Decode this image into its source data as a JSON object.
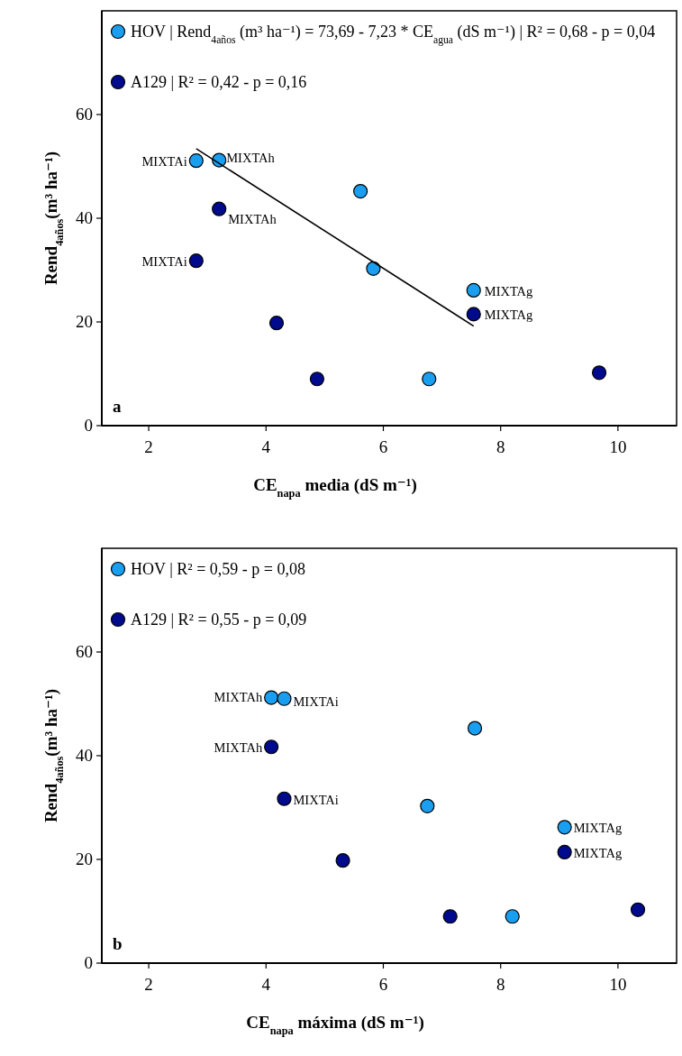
{
  "chart_data": [
    {
      "type": "scatter",
      "xlabel": "CE$_{napa}$ media (dS m⁻¹)",
      "ylabel": "Rend$_{4años}$(m³ ha⁻¹)",
      "xlim": [
        1.2,
        11
      ],
      "ylim": [
        0,
        80
      ],
      "xticks": [
        2,
        4,
        6,
        8,
        10
      ],
      "yticks": [
        0,
        20,
        40,
        60
      ],
      "legend": "top left",
      "marker": "circle",
      "series": [
        {
          "name": "HOV | Rend$_{4años}$ (m³ ha⁻¹) = 73,69 - 7,23 * CE$_{agua}$ (dS m⁻¹) | R² = 0,68 - p = 0,04",
          "color": "#1a9ff0",
          "x": [
            2.81,
            3.2,
            5.61,
            5.83,
            6.78,
            7.54
          ],
          "values": [
            51.1,
            51.2,
            45.2,
            30.3,
            9.0,
            26.1
          ]
        },
        {
          "name": "A129 | R² = 0,42 - p = 0,16",
          "color": "#000a8c",
          "x": [
            3.2,
            2.81,
            4.18,
            4.87,
            7.54,
            9.68
          ],
          "values": [
            41.8,
            31.8,
            19.8,
            9.0,
            21.5,
            10.2
          ]
        },
        {
          "type": "line",
          "marker": "none",
          "color": "#000000",
          "x": [
            2.81,
            7.54
          ],
          "values": [
            53.4,
            19.2
          ]
        }
      ],
      "annotations": [
        {
          "text": "MIXTAi",
          "x": 2.81,
          "y": 51.1
        },
        {
          "text": "MIXTAh",
          "x": 3.2,
          "y": 51.2
        },
        {
          "text": "MIXTAh",
          "x": 3.2,
          "y": 41.8
        },
        {
          "text": "MIXTAi",
          "x": 2.81,
          "y": 31.8
        },
        {
          "text": "MIXTAg",
          "x": 7.54,
          "y": 26.1
        },
        {
          "text": "MIXTAg",
          "x": 7.54,
          "y": 21.5
        },
        "a"
      ]
    },
    {
      "type": "scatter",
      "xlabel": "CE$_{napa}$ máxima (dS m⁻¹)",
      "ylabel": "Rend$_{4años}$(m³ ha⁻¹)",
      "xlim": [
        1.2,
        11
      ],
      "ylim": [
        0,
        80
      ],
      "xticks": [
        2,
        4,
        6,
        8,
        10
      ],
      "yticks": [
        0,
        20,
        40,
        60
      ],
      "legend": "top left",
      "marker": "circle",
      "series": [
        {
          "name": "HOV | R² = 0,59 - p = 0,08",
          "color": "#1a9ff0",
          "x": [
            4.09,
            4.31,
            7.56,
            6.75,
            8.2,
            9.09
          ],
          "values": [
            51.2,
            51.0,
            45.3,
            30.3,
            9.0,
            26.2
          ]
        },
        {
          "name": "A129 | R² = 0,55 - p = 0,09",
          "color": "#000a8c",
          "x": [
            4.09,
            4.31,
            5.31,
            7.14,
            9.09,
            10.34
          ],
          "values": [
            41.7,
            31.7,
            19.8,
            9.0,
            21.4,
            10.3
          ]
        }
      ],
      "annotations": [
        {
          "text": "MIXTAh",
          "x": 4.09,
          "y": 51.2
        },
        {
          "text": "MIXTAi",
          "x": 4.31,
          "y": 51.0
        },
        {
          "text": "MIXTAh",
          "x": 4.09,
          "y": 41.7
        },
        {
          "text": "MIXTAi",
          "x": 4.31,
          "y": 31.7
        },
        {
          "text": "MIXTAg",
          "x": 9.09,
          "y": 26.2
        },
        {
          "text": "MIXTAg",
          "x": 9.09,
          "y": 21.4
        },
        "b"
      ]
    }
  ]
}
